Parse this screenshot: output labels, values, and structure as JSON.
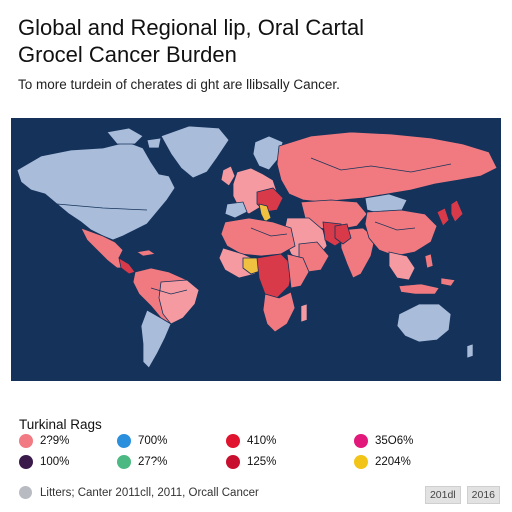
{
  "header": {
    "title_line1": "Global and Regional lip, Oral Cartal",
    "title_line2": "Grocel Cancer Burden",
    "subtitle": "To more turdein of cherates di ght are llibsally Cancer."
  },
  "map": {
    "ocean_color": "#15325a",
    "palette": {
      "high": "#f07a80",
      "medium": "#f59aa0",
      "red": "#d83a4a",
      "low": "#a9bddb",
      "yellow": "#f0c040"
    }
  },
  "legend": {
    "title": "Turkinal Rags",
    "items": [
      {
        "label": "2?9%",
        "color": "#f27a82"
      },
      {
        "label": "700%",
        "color": "#2a8fdc"
      },
      {
        "label": "410%",
        "color": "#e0142e"
      },
      {
        "label": "35O6%",
        "color": "#e2187a"
      },
      {
        "label": "100%",
        "color": "#3a1a4a"
      },
      {
        "label": "27?%",
        "color": "#4cb882"
      },
      {
        "label": "125%",
        "color": "#c8102e"
      },
      {
        "label": "2204%",
        "color": "#f2c418"
      }
    ]
  },
  "footer": {
    "source": "Litters; Canter 2011cll, 2011, Orcall Cancer",
    "dot_color": "#b8bcc2",
    "years": [
      "201dl",
      "2016"
    ]
  }
}
